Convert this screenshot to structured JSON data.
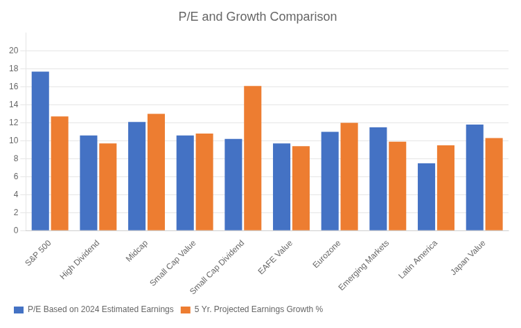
{
  "chart_data": {
    "type": "bar",
    "title": "P/E and Growth Comparison",
    "categories": [
      "S&P 500",
      "High Dividend",
      "Midcap",
      "Small Cap Value",
      "Small Cap Dividend",
      "EAFE Value",
      "Eurozone",
      "Emerging Markets",
      "Latin America",
      "Japan Value"
    ],
    "series": [
      {
        "name": "P/E Based on 2024 Estimated Earnings",
        "color": "#4472C4",
        "values": [
          17.7,
          10.6,
          12.1,
          10.6,
          10.2,
          9.7,
          11.0,
          11.5,
          7.5,
          11.8
        ]
      },
      {
        "name": "5 Yr. Projected Earnings Growth %",
        "color": "#ED7D31",
        "values": [
          12.7,
          9.7,
          13.0,
          10.8,
          16.1,
          9.4,
          12.0,
          9.9,
          9.5,
          10.3
        ]
      }
    ],
    "ylim": [
      0,
      22
    ],
    "yticks": [
      0,
      2,
      4,
      6,
      8,
      10,
      12,
      14,
      16,
      18,
      20
    ],
    "grid": true,
    "legend": "bottom"
  }
}
